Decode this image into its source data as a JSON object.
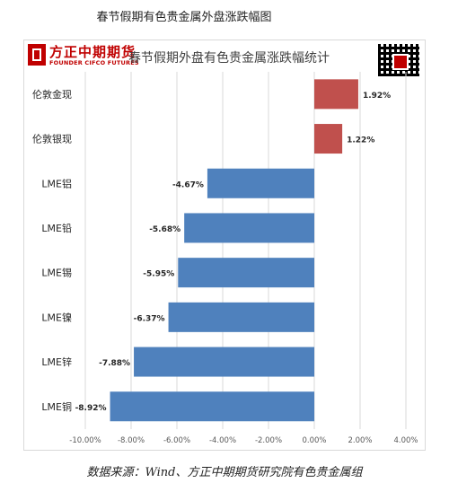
{
  "caption": "春节假期有色贵金属外盘涨跌幅图",
  "logo": {
    "name_cn": "方正中期期货",
    "name_en": "FOUNDER CIFCO FUTURES"
  },
  "qr_code": "qr-code",
  "source_note": "数据来源：Wind、方正中期期货研究院有色贵金属组",
  "colors": {
    "positive": "#c0504d",
    "negative": "#4f81bd",
    "grid": "#d9d9d9"
  },
  "chart_data": {
    "type": "bar",
    "orientation": "horizontal",
    "title": "春节假期外盘有色贵金属涨跌幅统计",
    "categories": [
      "伦敦金现",
      "伦敦银现",
      "LME铝",
      "LME铅",
      "LME锡",
      "LME镍",
      "LME锌",
      "LME铜"
    ],
    "values": [
      1.92,
      1.22,
      -4.67,
      -5.68,
      -5.95,
      -6.37,
      -7.88,
      -8.92
    ],
    "value_labels": [
      "1.92%",
      "1.22%",
      "-4.67%",
      "-5.68%",
      "-5.95%",
      "-6.37%",
      "-7.88%",
      "-8.92%"
    ],
    "xlim": [
      -10,
      4
    ],
    "xticks": [
      -10,
      -8,
      -6,
      -4,
      -2,
      0,
      2,
      4
    ],
    "xtick_labels": [
      "-10.00%",
      "-8.00%",
      "-6.00%",
      "-4.00%",
      "-2.00%",
      "0.00%",
      "2.00%",
      "4.00%"
    ],
    "grid": true,
    "legend": false
  }
}
